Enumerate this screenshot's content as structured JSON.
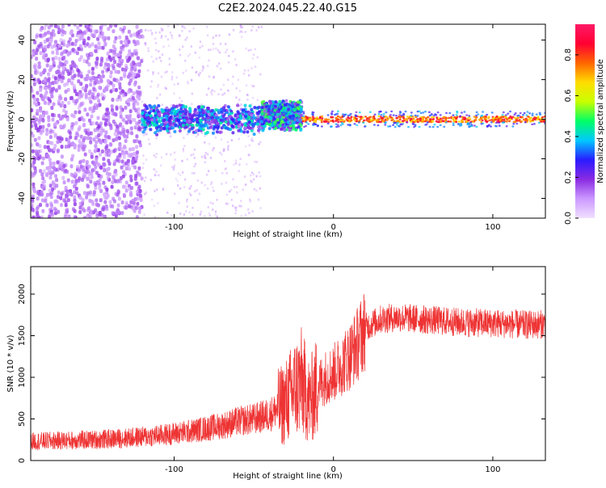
{
  "page_title": "C2E2.2024.045.22.40.G15",
  "colors": {
    "snr_line": "#ee3333",
    "frame": "#000000",
    "colormap": [
      "#f0e0ff",
      "#cc99ff",
      "#8a2be2",
      "#2a1bff",
      "#00c8ff",
      "#00ff66",
      "#c8ff00",
      "#ffdd00",
      "#ff6600",
      "#ff0033",
      "#ff1a66"
    ]
  },
  "chart_data": [
    {
      "type": "heatmap",
      "title": "C2E2.2024.045.22.40.G15",
      "xlabel": "Height of straight line (km)",
      "ylabel": "Frequency (Hz)",
      "xlim": [
        -190,
        133
      ],
      "ylim": [
        -50,
        48
      ],
      "xticks": [
        -100,
        0,
        100
      ],
      "yticks": [
        -40,
        -20,
        0,
        20,
        40
      ],
      "grid": false,
      "colorbar": {
        "label": "Normalized spectral amplitude",
        "range": [
          0,
          0.95
        ],
        "ticks": [
          0.0,
          0.2,
          0.4,
          0.6,
          0.8
        ]
      },
      "regions": [
        {
          "x_range": [
            -190,
            -120
          ],
          "freq_range": [
            -50,
            48
          ],
          "amplitude": 0.12,
          "note": "scattered noise"
        },
        {
          "x_range": [
            -120,
            -45
          ],
          "freq_range": [
            -8,
            8
          ],
          "amplitude": 0.3
        },
        {
          "x_range": [
            -45,
            -20
          ],
          "freq_range": [
            -6,
            10
          ],
          "amplitude": 0.35
        },
        {
          "x_range": [
            -20,
            133
          ],
          "freq_range": [
            -1.5,
            1.5
          ],
          "amplitude": 0.85,
          "note": "narrow carrier line"
        }
      ]
    },
    {
      "type": "line",
      "xlabel": "Height of straight line (km)",
      "ylabel": "SNR (10 * v/v)",
      "xlim": [
        -190,
        133
      ],
      "ylim": [
        0,
        2330
      ],
      "xticks": [
        -100,
        0,
        100
      ],
      "yticks": [
        0,
        500,
        1000,
        1500,
        2000
      ],
      "grid": false,
      "series": [
        {
          "x": [
            -190,
            -170,
            -150,
            -130,
            -110,
            -90,
            -70,
            -60,
            -50,
            -40,
            -30,
            -25,
            -20,
            -15,
            -10,
            -5,
            0,
            5,
            10,
            15,
            20,
            30,
            40,
            60,
            80,
            100,
            120,
            133
          ],
          "values": [
            230,
            240,
            250,
            270,
            300,
            350,
            420,
            470,
            500,
            550,
            700,
            850,
            950,
            700,
            900,
            1000,
            1050,
            1150,
            1250,
            1400,
            1600,
            1700,
            1720,
            1690,
            1660,
            1650,
            1630,
            1640
          ]
        }
      ]
    }
  ]
}
